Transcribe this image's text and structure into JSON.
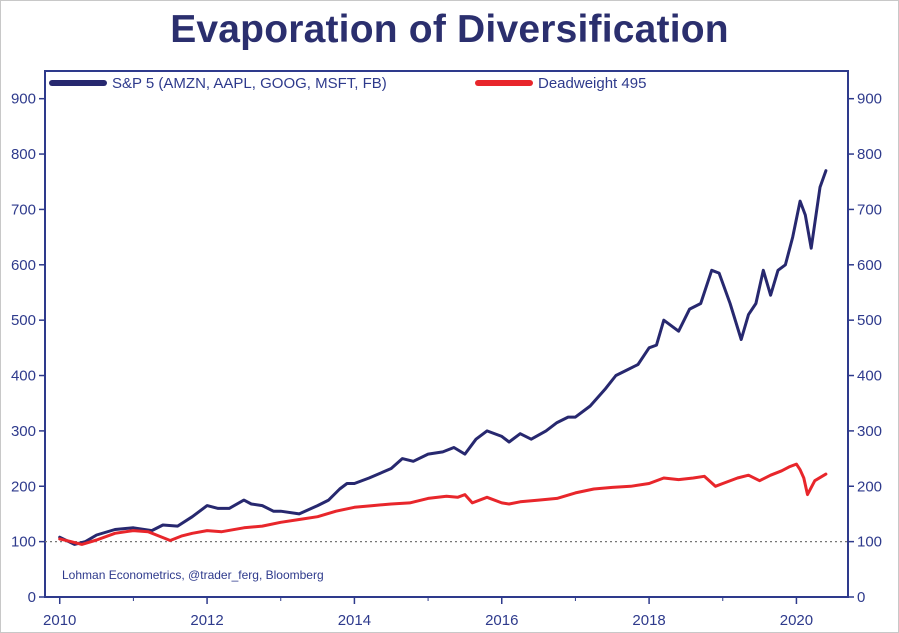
{
  "chart_data": {
    "type": "line",
    "title": "Evaporation of Diversification",
    "source": "Lohman Econometrics, @trader_ferg, Bloomberg",
    "xlim": [
      2009.8,
      2020.7
    ],
    "ylim": [
      0,
      950
    ],
    "x_ticks": [
      2010,
      2012,
      2014,
      2016,
      2018,
      2020
    ],
    "y_ticks": [
      0,
      100,
      200,
      300,
      400,
      500,
      600,
      700,
      800,
      900
    ],
    "reference_line": 100,
    "grid": false,
    "legend_position": "top-left",
    "colors": {
      "axis": "#2e3a8c",
      "sp5": "#27286f",
      "dw": "#e8262b",
      "ref": "#777777"
    },
    "series": [
      {
        "name": "S&P 5 (AMZN, AAPL, GOOG, MSFT, FB)",
        "color": "#27286f",
        "x": [
          2010.0,
          2010.2,
          2010.35,
          2010.5,
          2010.75,
          2011.0,
          2011.25,
          2011.4,
          2011.6,
          2011.8,
          2012.0,
          2012.15,
          2012.3,
          2012.5,
          2012.6,
          2012.75,
          2012.9,
          2013.0,
          2013.25,
          2013.5,
          2013.65,
          2013.8,
          2013.9,
          2014.0,
          2014.2,
          2014.5,
          2014.65,
          2014.8,
          2015.0,
          2015.2,
          2015.35,
          2015.5,
          2015.65,
          2015.8,
          2016.0,
          2016.1,
          2016.25,
          2016.4,
          2016.6,
          2016.75,
          2016.9,
          2017.0,
          2017.2,
          2017.4,
          2017.55,
          2017.7,
          2017.85,
          2018.0,
          2018.1,
          2018.2,
          2018.4,
          2018.55,
          2018.7,
          2018.85,
          2018.95,
          2019.1,
          2019.25,
          2019.35,
          2019.45,
          2019.55,
          2019.65,
          2019.75,
          2019.85,
          2019.95,
          2020.05,
          2020.12,
          2020.2,
          2020.32,
          2020.4
        ],
        "y": [
          108,
          95,
          100,
          112,
          122,
          125,
          120,
          130,
          128,
          145,
          165,
          160,
          160,
          175,
          168,
          165,
          155,
          155,
          150,
          165,
          175,
          195,
          205,
          205,
          215,
          232,
          250,
          245,
          258,
          262,
          270,
          258,
          285,
          300,
          290,
          280,
          295,
          285,
          300,
          315,
          325,
          325,
          345,
          375,
          400,
          410,
          420,
          450,
          455,
          500,
          480,
          520,
          530,
          590,
          585,
          530,
          465,
          510,
          530,
          590,
          545,
          590,
          600,
          650,
          715,
          690,
          630,
          740,
          770
        ]
      },
      {
        "name": "Deadweight 495",
        "color": "#e8262b",
        "x": [
          2010.0,
          2010.15,
          2010.3,
          2010.5,
          2010.75,
          2011.0,
          2011.2,
          2011.35,
          2011.5,
          2011.65,
          2011.8,
          2012.0,
          2012.2,
          2012.5,
          2012.75,
          2013.0,
          2013.25,
          2013.5,
          2013.75,
          2014.0,
          2014.25,
          2014.5,
          2014.75,
          2015.0,
          2015.25,
          2015.4,
          2015.5,
          2015.6,
          2015.8,
          2016.0,
          2016.1,
          2016.25,
          2016.5,
          2016.75,
          2017.0,
          2017.25,
          2017.5,
          2017.75,
          2018.0,
          2018.2,
          2018.4,
          2018.6,
          2018.75,
          2018.9,
          2019.0,
          2019.2,
          2019.35,
          2019.5,
          2019.65,
          2019.8,
          2019.9,
          2020.0,
          2020.05,
          2020.1,
          2020.15,
          2020.25,
          2020.4
        ],
        "y": [
          105,
          100,
          95,
          103,
          115,
          120,
          118,
          110,
          102,
          110,
          115,
          120,
          118,
          125,
          128,
          135,
          140,
          145,
          155,
          162,
          165,
          168,
          170,
          178,
          182,
          180,
          185,
          170,
          180,
          170,
          168,
          172,
          175,
          178,
          188,
          195,
          198,
          200,
          205,
          215,
          212,
          215,
          218,
          200,
          205,
          215,
          220,
          210,
          220,
          228,
          235,
          240,
          230,
          215,
          185,
          210,
          222
        ]
      }
    ]
  }
}
